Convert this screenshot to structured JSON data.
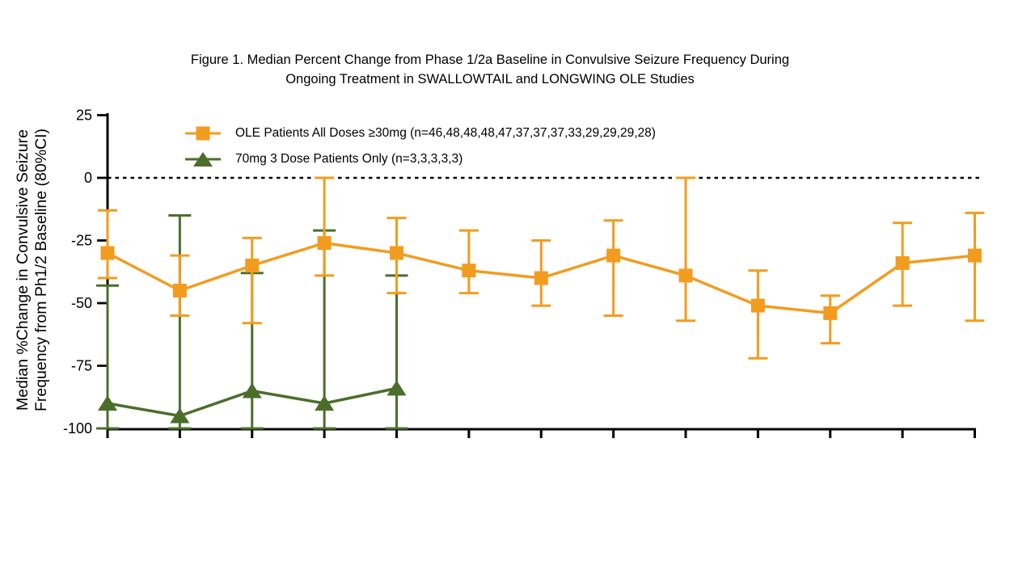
{
  "figure": {
    "title_line1": "Figure 1. Median Percent Change from Phase 1/2a Baseline in Convulsive Seizure Frequency During",
    "title_line2": "Ongoing Treatment in SWALLOWTAIL and LONGWING OLE Studies"
  },
  "y_axis": {
    "label_line1": "Median %Change in Convulsive Seizure",
    "label_line2": "Frequency from Ph1/2 Baseline (80%CI)"
  },
  "chart_data": {
    "type": "line",
    "title": "Figure 1. Median Percent Change from Phase 1/2a Baseline in Convulsive Seizure Frequency During Ongoing Treatment in SWALLOWTAIL and LONGWING OLE Studies",
    "ylabel": "Median %Change in Convulsive Seizure Frequency from Ph1/2 Baseline (80%CI)",
    "x": [
      1,
      2,
      3,
      4,
      5,
      6,
      7,
      8,
      9,
      10,
      11,
      12,
      13
    ],
    "x_tick_labels_visible": false,
    "ylim": [
      -100,
      25
    ],
    "y_ticks": [
      25,
      0,
      -25,
      -50,
      -75,
      -100
    ],
    "baseline": 0,
    "error_bars": "80% CI",
    "grid": false,
    "legend_position": "top-left-inside",
    "series": [
      {
        "name": "OLE Patients All Doses ≥30mg (n=46,48,48,48,47,37,37,37,33,29,29,29,28)",
        "marker": "square",
        "color": "#F29C1F",
        "n": [
          46,
          48,
          48,
          48,
          47,
          37,
          37,
          37,
          33,
          29,
          29,
          29,
          28
        ],
        "values": [
          -30,
          -45,
          -35,
          -26,
          -30,
          -37,
          -40,
          -31,
          -39,
          -51,
          -54,
          -34,
          -31
        ],
        "ci_low": [
          -40,
          -55,
          -58,
          -39,
          -46,
          -46,
          -51,
          -55,
          -57,
          -72,
          -66,
          -51,
          -57
        ],
        "ci_high": [
          -13,
          -31,
          -24,
          0,
          -16,
          -21,
          -25,
          -17,
          0,
          -37,
          -47,
          -18,
          -14
        ]
      },
      {
        "name": "70mg 3 Dose Patients Only (n=3,3,3,3,3)",
        "marker": "triangle",
        "color": "#4C6E2B",
        "n": [
          3,
          3,
          3,
          3,
          3
        ],
        "values": [
          -90,
          -95,
          -85,
          -90,
          -84
        ],
        "ci_low": [
          -100,
          -100,
          -100,
          -100,
          -100
        ],
        "ci_high": [
          -43,
          -15,
          -38,
          -21,
          -39
        ]
      }
    ]
  }
}
